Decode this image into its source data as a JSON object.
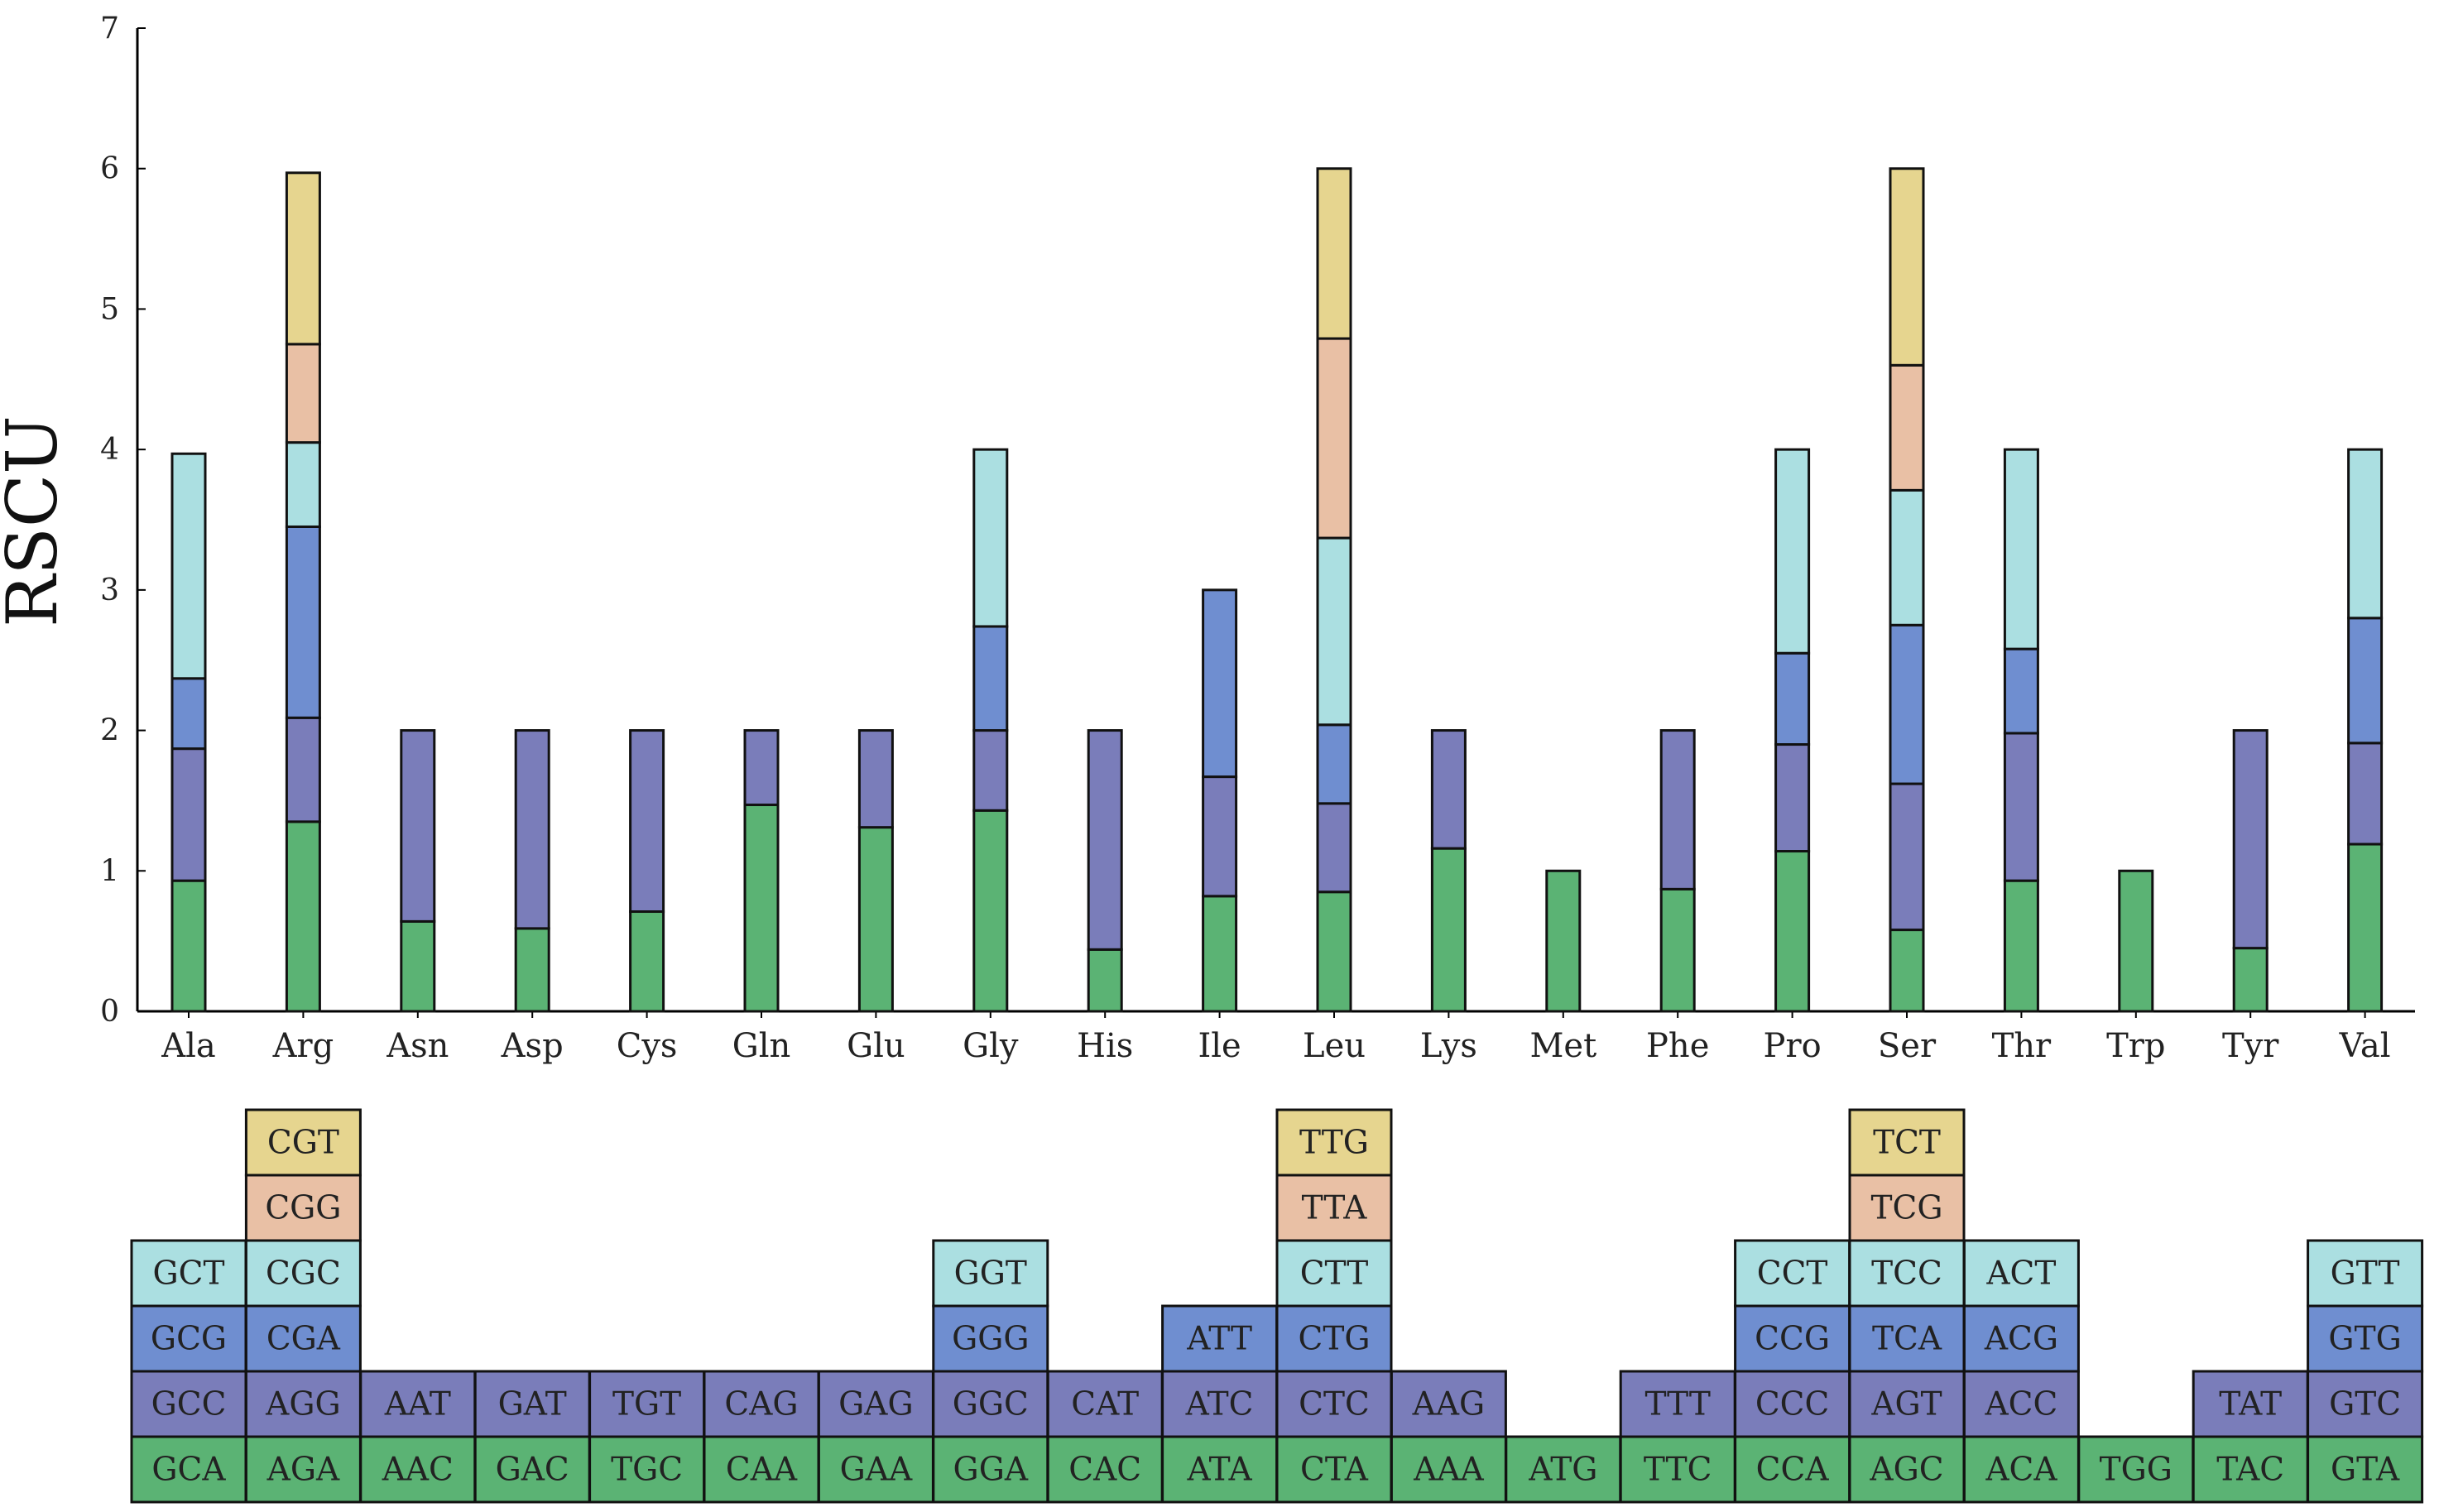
{
  "chart_data": {
    "type": "bar",
    "stacked": true,
    "title": "",
    "xlabel": "",
    "ylabel": "RSCU",
    "ylim": [
      0,
      7
    ],
    "yticks": [
      "0",
      "1",
      "2",
      "3",
      "4",
      "5",
      "6",
      "7"
    ],
    "grid": false,
    "colors": [
      "#5bb374",
      "#7a7dba",
      "#6f8ed0",
      "#abdfe1",
      "#e9c0a5",
      "#e6d58f"
    ],
    "categories": [
      "Ala",
      "Arg",
      "Asn",
      "Asp",
      "Cys",
      "Gln",
      "Glu",
      "Gly",
      "His",
      "Ile",
      "Leu",
      "Lys",
      "Met",
      "Phe",
      "Pro",
      "Ser",
      "Thr",
      "Trp",
      "Tyr",
      "Val"
    ],
    "stacks": [
      {
        "category": "Ala",
        "codons": [
          "GCA",
          "GCC",
          "GCG",
          "GCT"
        ],
        "values": [
          0.93,
          0.94,
          0.5,
          1.6
        ]
      },
      {
        "category": "Arg",
        "codons": [
          "AGA",
          "AGG",
          "CGA",
          "CGC",
          "CGG",
          "CGT"
        ],
        "values": [
          1.35,
          0.74,
          1.36,
          0.6,
          0.7,
          1.22
        ]
      },
      {
        "category": "Asn",
        "codons": [
          "AAC",
          "AAT"
        ],
        "values": [
          0.64,
          1.36
        ]
      },
      {
        "category": "Asp",
        "codons": [
          "GAC",
          "GAT"
        ],
        "values": [
          0.59,
          1.41
        ]
      },
      {
        "category": "Cys",
        "codons": [
          "TGC",
          "TGT"
        ],
        "values": [
          0.71,
          1.29
        ]
      },
      {
        "category": "Gln",
        "codons": [
          "CAA",
          "CAG"
        ],
        "values": [
          1.47,
          0.53
        ]
      },
      {
        "category": "Glu",
        "codons": [
          "GAA",
          "GAG"
        ],
        "values": [
          1.31,
          0.69
        ]
      },
      {
        "category": "Gly",
        "codons": [
          "GGA",
          "GGC",
          "GGG",
          "GGT"
        ],
        "values": [
          1.43,
          0.57,
          0.74,
          1.26
        ]
      },
      {
        "category": "His",
        "codons": [
          "CAC",
          "CAT"
        ],
        "values": [
          0.44,
          1.56
        ]
      },
      {
        "category": "Ile",
        "codons": [
          "ATA",
          "ATC",
          "ATT"
        ],
        "values": [
          0.82,
          0.85,
          1.33
        ]
      },
      {
        "category": "Leu",
        "codons": [
          "CTA",
          "CTC",
          "CTG",
          "CTT",
          "TTA",
          "TTG"
        ],
        "values": [
          0.85,
          0.63,
          0.56,
          1.33,
          1.42,
          1.21
        ]
      },
      {
        "category": "Lys",
        "codons": [
          "AAA",
          "AAG"
        ],
        "values": [
          1.16,
          0.84
        ]
      },
      {
        "category": "Met",
        "codons": [
          "ATG"
        ],
        "values": [
          1.0
        ]
      },
      {
        "category": "Phe",
        "codons": [
          "TTC",
          "TTT"
        ],
        "values": [
          0.87,
          1.13
        ]
      },
      {
        "category": "Pro",
        "codons": [
          "CCA",
          "CCC",
          "CCG",
          "CCT"
        ],
        "values": [
          1.14,
          0.76,
          0.65,
          1.45
        ]
      },
      {
        "category": "Ser",
        "codons": [
          "AGC",
          "AGT",
          "TCA",
          "TCC",
          "TCG",
          "TCT"
        ],
        "values": [
          0.58,
          1.04,
          1.13,
          0.96,
          0.89,
          1.4
        ]
      },
      {
        "category": "Thr",
        "codons": [
          "ACA",
          "ACC",
          "ACG",
          "ACT"
        ],
        "values": [
          0.93,
          1.05,
          0.6,
          1.42
        ]
      },
      {
        "category": "Trp",
        "codons": [
          "TGG"
        ],
        "values": [
          1.0
        ]
      },
      {
        "category": "Tyr",
        "codons": [
          "TAC",
          "TAT"
        ],
        "values": [
          0.45,
          1.55
        ]
      },
      {
        "category": "Val",
        "codons": [
          "GTA",
          "GTC",
          "GTG",
          "GTT"
        ],
        "values": [
          1.19,
          0.72,
          0.89,
          1.2
        ]
      }
    ]
  }
}
